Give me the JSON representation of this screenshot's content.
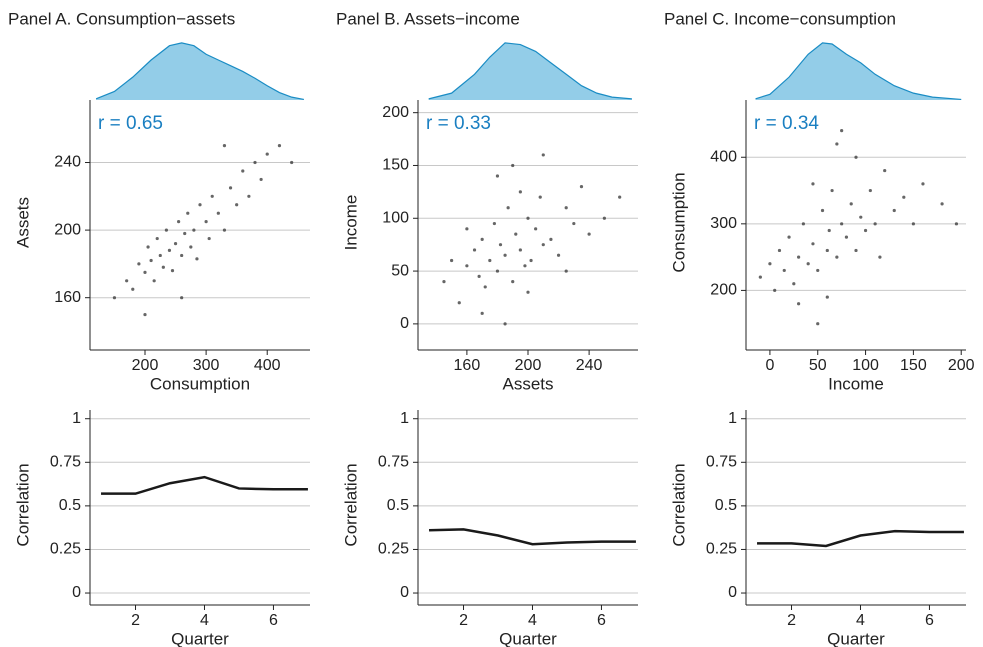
{
  "chart_data": [
    {
      "type": "area",
      "title": "Panel A. Consumption−assets",
      "color": "#93cde8",
      "line_color": "#1a8cc4",
      "x": [
        120,
        150,
        180,
        210,
        240,
        260,
        280,
        300,
        320,
        340,
        360,
        380,
        400,
        420,
        440,
        460
      ],
      "values": [
        0.02,
        0.15,
        0.4,
        0.7,
        0.95,
        1,
        0.95,
        0.8,
        0.7,
        0.6,
        0.5,
        0.38,
        0.25,
        0.13,
        0.05,
        0.01
      ],
      "xlim": [
        110,
        470
      ],
      "ylim": [
        0,
        1.05
      ]
    },
    {
      "type": "scatter",
      "x_label": "Consumption",
      "y_label": "Assets",
      "annotation": "r = 0.65",
      "annotation_color": "#1a7fc1",
      "color": "#333333",
      "grid": true,
      "x": [
        150,
        170,
        180,
        190,
        200,
        205,
        210,
        215,
        220,
        225,
        230,
        235,
        240,
        245,
        250,
        255,
        260,
        265,
        270,
        275,
        280,
        285,
        290,
        300,
        305,
        310,
        320,
        330,
        340,
        350,
        360,
        370,
        380,
        390,
        400,
        420,
        440,
        200,
        260,
        330
      ],
      "y": [
        160,
        170,
        165,
        180,
        175,
        190,
        182,
        170,
        195,
        185,
        178,
        200,
        188,
        176,
        192,
        205,
        185,
        198,
        210,
        190,
        200,
        183,
        215,
        205,
        195,
        220,
        210,
        200,
        225,
        215,
        235,
        220,
        240,
        230,
        245,
        250,
        240,
        150,
        160,
        250
      ],
      "xlim": [
        110,
        470
      ],
      "ylim": [
        132,
        277
      ],
      "xticks": [
        200,
        300,
        400
      ],
      "yticks": [
        160,
        200,
        240
      ]
    },
    {
      "type": "line",
      "x_label": "Quarter",
      "y_label": "Correlation",
      "color": "#1a1a1a",
      "grid": true,
      "x": [
        1,
        2,
        3,
        4,
        5,
        6,
        7
      ],
      "values": [
        0.57,
        0.57,
        0.63,
        0.665,
        0.6,
        0.595,
        0.595
      ],
      "xlim": [
        0.68,
        7.06
      ],
      "ylim": [
        -0.04,
        1.05
      ],
      "xticks": [
        2,
        4,
        6
      ],
      "yticks": [
        0,
        0.25,
        0.5,
        0.75,
        1
      ]
    },
    {
      "type": "area",
      "title": "Panel B. Assets−income",
      "color": "#93cde8",
      "line_color": "#1a8cc4",
      "x": [
        135,
        150,
        165,
        175,
        185,
        195,
        205,
        215,
        225,
        235,
        245,
        255,
        268
      ],
      "values": [
        0.02,
        0.12,
        0.45,
        0.75,
        1,
        0.97,
        0.85,
        0.65,
        0.45,
        0.25,
        0.12,
        0.05,
        0.02
      ],
      "xlim": [
        128,
        272
      ],
      "ylim": [
        0,
        1.05
      ]
    },
    {
      "type": "scatter",
      "x_label": "Assets",
      "y_label": "Income",
      "annotation": "r = 0.33",
      "annotation_color": "#1a7fc1",
      "color": "#333333",
      "grid": true,
      "x": [
        145,
        150,
        155,
        160,
        165,
        168,
        170,
        172,
        175,
        178,
        180,
        182,
        185,
        187,
        190,
        192,
        195,
        198,
        200,
        202,
        205,
        208,
        210,
        215,
        220,
        225,
        230,
        235,
        240,
        250,
        260,
        170,
        180,
        190,
        200,
        210,
        160,
        185,
        195,
        225
      ],
      "y": [
        40,
        60,
        20,
        55,
        70,
        45,
        80,
        35,
        60,
        95,
        50,
        75,
        65,
        110,
        40,
        85,
        70,
        55,
        100,
        60,
        90,
        120,
        75,
        80,
        65,
        110,
        95,
        130,
        85,
        100,
        120,
        10,
        140,
        150,
        30,
        160,
        90,
        0,
        125,
        50
      ],
      "xlim": [
        128,
        272
      ],
      "ylim": [
        -20,
        212
      ],
      "xticks": [
        160,
        200,
        240
      ],
      "yticks": [
        0,
        50,
        100,
        150,
        200
      ]
    },
    {
      "type": "line",
      "x_label": "Quarter",
      "y_label": "Correlation",
      "color": "#1a1a1a",
      "grid": true,
      "x": [
        1,
        2,
        3,
        4,
        5,
        6,
        7
      ],
      "values": [
        0.36,
        0.365,
        0.33,
        0.28,
        0.29,
        0.295,
        0.295
      ],
      "xlim": [
        0.68,
        7.06
      ],
      "ylim": [
        -0.04,
        1.05
      ],
      "xticks": [
        2,
        4,
        6
      ],
      "yticks": [
        0,
        0.25,
        0.5,
        0.75,
        1
      ]
    },
    {
      "type": "area",
      "title": "Panel C. Income−consumption",
      "color": "#93cde8",
      "line_color": "#1a8cc4",
      "x": [
        -15,
        0,
        20,
        40,
        55,
        65,
        80,
        95,
        110,
        130,
        150,
        170,
        200
      ],
      "values": [
        0.02,
        0.1,
        0.4,
        0.8,
        1,
        0.98,
        0.8,
        0.65,
        0.45,
        0.25,
        0.12,
        0.05,
        0.01
      ],
      "xlim": [
        -25,
        205
      ],
      "ylim": [
        0,
        1.05
      ]
    },
    {
      "type": "scatter",
      "x_label": "Income",
      "y_label": "Consumption",
      "annotation": "r = 0.34",
      "annotation_color": "#1a7fc1",
      "color": "#333333",
      "grid": true,
      "x": [
        -10,
        0,
        5,
        10,
        15,
        20,
        25,
        30,
        35,
        40,
        45,
        50,
        55,
        60,
        62,
        65,
        70,
        75,
        80,
        85,
        90,
        95,
        100,
        105,
        110,
        120,
        130,
        140,
        150,
        160,
        180,
        195,
        30,
        50,
        70,
        90,
        45,
        60,
        115,
        75
      ],
      "y": [
        220,
        240,
        200,
        260,
        230,
        280,
        210,
        250,
        300,
        240,
        270,
        230,
        320,
        260,
        290,
        350,
        250,
        300,
        280,
        330,
        260,
        310,
        290,
        350,
        300,
        380,
        320,
        340,
        300,
        360,
        330,
        300,
        180,
        150,
        420,
        400,
        360,
        190,
        250,
        440
      ],
      "xlim": [
        -25,
        205
      ],
      "ylim": [
        118,
        486
      ],
      "xticks": [
        0,
        50,
        100,
        150,
        200
      ],
      "yticks": [
        200,
        300,
        400
      ]
    },
    {
      "type": "line",
      "x_label": "Quarter",
      "y_label": "Correlation",
      "color": "#1a1a1a",
      "grid": true,
      "x": [
        1,
        2,
        3,
        4,
        5,
        6,
        7
      ],
      "values": [
        0.285,
        0.285,
        0.27,
        0.33,
        0.355,
        0.35,
        0.35
      ],
      "xlim": [
        0.68,
        7.06
      ],
      "ylim": [
        -0.04,
        1.05
      ],
      "xticks": [
        2,
        4,
        6
      ],
      "yticks": [
        0,
        0.25,
        0.5,
        0.75,
        1
      ]
    }
  ]
}
